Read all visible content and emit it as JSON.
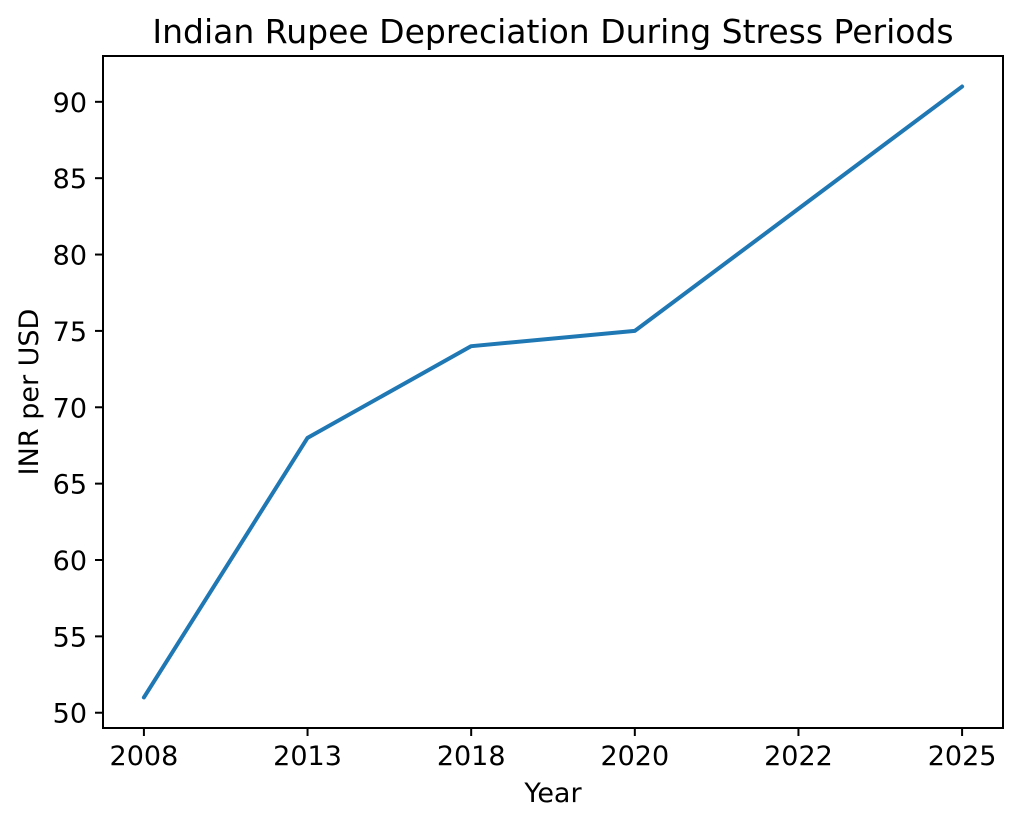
{
  "chart_data": {
    "type": "line",
    "title": "Indian Rupee Depreciation During Stress Periods",
    "xlabel": "Year",
    "ylabel": "INR per USD",
    "categories": [
      "2008",
      "2013",
      "2018",
      "2020",
      "2022",
      "2025"
    ],
    "series": [
      {
        "name": "INR per USD",
        "values": [
          51,
          68,
          74,
          75,
          83,
          91
        ]
      }
    ],
    "yticks": [
      50,
      55,
      60,
      65,
      70,
      75,
      80,
      85,
      90
    ],
    "ylim": [
      49,
      93
    ],
    "grid": false,
    "legend_position": "none",
    "line_color": "#1f77b4",
    "line_width": 4,
    "axis_color": "#000000",
    "background_color": "#ffffff"
  }
}
